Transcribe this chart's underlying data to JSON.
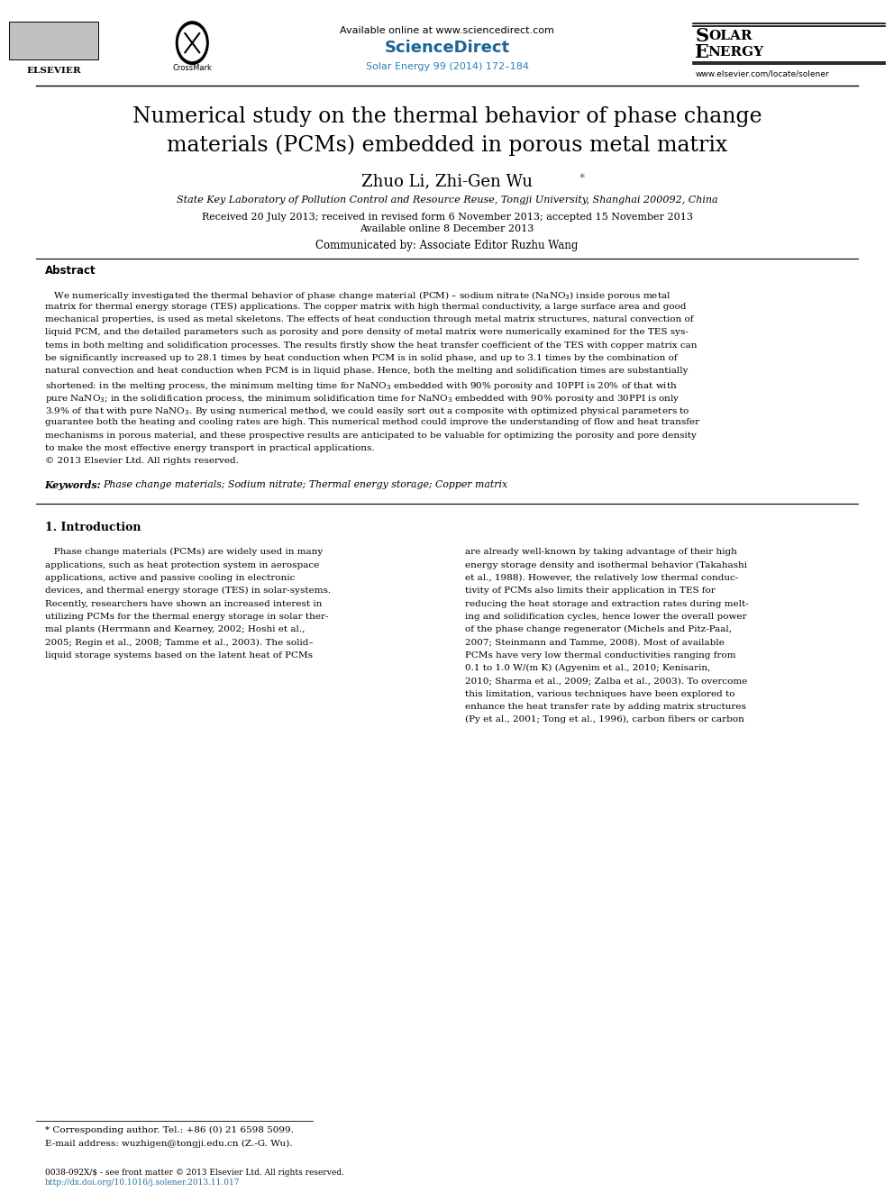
{
  "page_width": 9.92,
  "page_height": 13.23,
  "bg_color": "#ffffff",
  "header": {
    "available_online": "Available online at www.sciencedirect.com",
    "sciencedirect": "ScienceDirect",
    "journal_ref": "Solar Energy 99 (2014) 172–184",
    "journal_name_line1": "Solar",
    "journal_name_line2": "Energy",
    "website": "www.elsevier.com/locate/solener",
    "elsevier_text": "ELSEVIER",
    "crossmark_text": "CrossMark"
  },
  "title": "Numerical study on the thermal behavior of phase change\nmaterials (PCMs) embedded in porous metal matrix",
  "authors": "Zhuo Li, Zhi-Gen Wu",
  "authors_asterisk": "*",
  "affiliation": "State Key Laboratory of Pollution Control and Resource Reuse, Tongji University, Shanghai 200092, China",
  "received": "Received 20 July 2013; received in revised form 6 November 2013; accepted 15 November 2013",
  "available": "Available online 8 December 2013",
  "communicated": "Communicated by: Associate Editor Ruzhu Wang",
  "abstract_heading": "Abstract",
  "keywords_label": "Keywords:",
  "keywords_text": "Phase change materials; Sodium nitrate; Thermal energy storage; Copper matrix",
  "footnote_asterisk": "* Corresponding author. Tel.: +86 (0) 21 6598 5099.",
  "footnote_email": "E-mail address: wuzhigen@tongji.edu.cn (Z.-G. Wu).",
  "footer_line1": "0038-092X/$ - see front matter © 2013 Elsevier Ltd. All rights reserved.",
  "footer_line2": "http://dx.doi.org/10.1016/j.solener.2013.11.017",
  "colors": {
    "sciencedirect_blue": "#1a6496",
    "journal_ref_blue": "#2980b9",
    "black": "#000000",
    "link_blue": "#2471a3",
    "ref_orange": "#c0622a"
  },
  "abstract_lines": [
    "   We numerically investigated the thermal behavior of phase change material (PCM) – sodium nitrate (NaNO$_3$) inside porous metal",
    "matrix for thermal energy storage (TES) applications. The copper matrix with high thermal conductivity, a large surface area and good",
    "mechanical properties, is used as metal skeletons. The effects of heat conduction through metal matrix structures, natural convection of",
    "liquid PCM, and the detailed parameters such as porosity and pore density of metal matrix were numerically examined for the TES sys-",
    "tems in both melting and solidification processes. The results firstly show the heat transfer coefficient of the TES with copper matrix can",
    "be significantly increased up to 28.1 times by heat conduction when PCM is in solid phase, and up to 3.1 times by the combination of",
    "natural convection and heat conduction when PCM is in liquid phase. Hence, both the melting and solidification times are substantially",
    "shortened: in the melting process, the minimum melting time for NaNO$_3$ embedded with 90% porosity and 10PPI is 20% of that with",
    "pure NaNO$_3$; in the solidification process, the minimum solidification time for NaNO$_3$ embedded with 90% porosity and 30PPI is only",
    "3.9% of that with pure NaNO$_3$. By using numerical method, we could easily sort out a composite with optimized physical parameters to",
    "guarantee both the heating and cooling rates are high. This numerical method could improve the understanding of flow and heat transfer",
    "mechanisms in porous material, and these prospective results are anticipated to be valuable for optimizing the porosity and pore density",
    "to make the most effective energy transport in practical applications.",
    "© 2013 Elsevier Ltd. All rights reserved."
  ],
  "col1_lines": [
    "   Phase change materials (PCMs) are widely used in many",
    "applications, such as heat protection system in aerospace",
    "applications, active and passive cooling in electronic",
    "devices, and thermal energy storage (TES) in solar-systems.",
    "Recently, researchers have shown an increased interest in",
    "utilizing PCMs for the thermal energy storage in solar ther-",
    "mal plants (Herrmann and Kearney, 2002; Hoshi et al.,",
    "2005; Regin et al., 2008; Tamme et al., 2003). The solid–",
    "liquid storage systems based on the latent heat of PCMs"
  ],
  "col2_lines": [
    "are already well-known by taking advantage of their high",
    "energy storage density and isothermal behavior (Takahashi",
    "et al., 1988). However, the relatively low thermal conduc-",
    "tivity of PCMs also limits their application in TES for",
    "reducing the heat storage and extraction rates during melt-",
    "ing and solidification cycles, hence lower the overall power",
    "of the phase change regenerator (Michels and Pitz-Paal,",
    "2007; Steinmann and Tamme, 2008). Most of available",
    "PCMs have very low thermal conductivities ranging from",
    "0.1 to 1.0 W/(m K) (Agyenim et al., 2010; Kenisarin,",
    "2010; Sharma et al., 2009; Zalba et al., 2003). To overcome",
    "this limitation, various techniques have been explored to",
    "enhance the heat transfer rate by adding matrix structures",
    "(Py et al., 2001; Tong et al., 1996), carbon fibers or carbon"
  ]
}
